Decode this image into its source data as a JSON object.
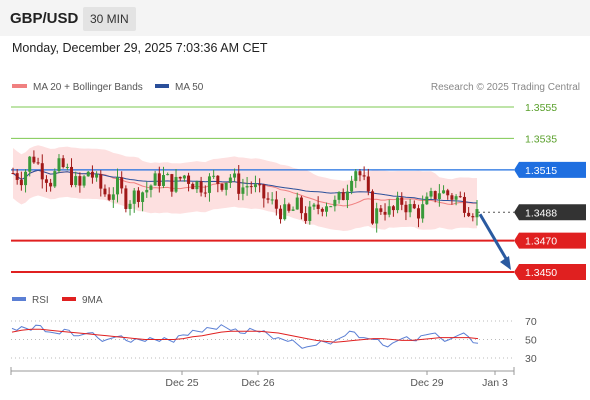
{
  "header": {
    "pair": "GBP/USD",
    "timeframe": "30 MIN",
    "datetime": "Monday, December 29, 2025 7:03:36 AM CET"
  },
  "legend": {
    "bollinger": "MA 20 + Bollinger Bands",
    "ma50": "MA 50",
    "source": "Research © 2025 Trading Central",
    "rsi": "RSI",
    "rsi_ma": "9MA"
  },
  "colors": {
    "bullish": "#3a9a3a",
    "bearish": "#a01818",
    "bollinger": "#f08080",
    "ma50": "#2a4f9a",
    "resistance_green": "#7ec850",
    "pivot_blue": "#1f6fe0",
    "support_red": "#e02020",
    "current_price": "#333333",
    "rsi_line": "#5b7fd4",
    "rsi_ma_line": "#e02020"
  },
  "chart_data": {
    "type": "candlestick",
    "instrument": "GBP/USD",
    "timeframe": "30 MIN",
    "x_tick_labels": [
      "Dec 25",
      "Dec 26",
      "Dec 29",
      "Jan 3"
    ],
    "price_levels": [
      {
        "value": "1.3555",
        "kind": "resistance"
      },
      {
        "value": "1.3535",
        "kind": "resistance"
      },
      {
        "value": "1.3515",
        "kind": "pivot"
      },
      {
        "value": "1.3488",
        "kind": "current"
      },
      {
        "value": "1.3470",
        "kind": "support"
      },
      {
        "value": "1.3450",
        "kind": "support"
      }
    ],
    "ylim": [
      1.344,
      1.357
    ],
    "forecast_arrow": {
      "from": 1.3488,
      "to": 1.345,
      "direction": "down"
    },
    "price_path": [
      1.3513,
      1.351,
      1.3525,
      1.3515,
      1.3508,
      1.3518,
      1.3512,
      1.3503,
      1.3515,
      1.3505,
      1.3498,
      1.3505,
      1.3495,
      1.35,
      1.3502,
      1.3508,
      1.351,
      1.3505,
      1.3512,
      1.3507,
      1.3505,
      1.3509,
      1.3507,
      1.3511,
      1.3503,
      1.3506,
      1.35,
      1.3495,
      1.349,
      1.3486,
      1.3492,
      1.3485,
      1.349,
      1.3495,
      1.3493,
      1.35,
      1.3518,
      1.3508,
      1.3485,
      1.3492,
      1.3487,
      1.3495,
      1.349,
      1.3488,
      1.3496,
      1.3502,
      1.3499,
      1.3497,
      1.3492,
      1.3488
    ],
    "rsi": {
      "levels": [
        70,
        50,
        30
      ],
      "values": [
        62,
        64,
        60,
        65,
        58,
        56,
        60,
        54,
        57,
        52,
        50,
        53,
        49,
        51,
        48,
        50,
        52,
        47,
        55,
        60,
        58,
        62,
        66,
        60,
        57,
        62,
        58,
        55,
        52,
        48,
        45,
        42,
        44,
        47,
        49,
        54,
        58,
        52,
        50,
        44,
        46,
        51,
        49,
        54,
        56,
        52,
        50,
        55,
        53,
        46
      ],
      "ma_values": [
        58,
        60,
        61,
        61,
        60,
        59,
        58,
        57,
        56,
        55,
        54,
        53,
        52,
        51,
        50,
        50,
        50,
        50,
        51,
        53,
        54,
        56,
        58,
        59,
        59,
        59,
        59,
        58,
        57,
        55,
        53,
        51,
        49,
        48,
        47,
        48,
        49,
        50,
        51,
        51,
        50,
        49,
        49,
        50,
        51,
        52,
        52,
        52,
        52,
        51
      ]
    }
  }
}
